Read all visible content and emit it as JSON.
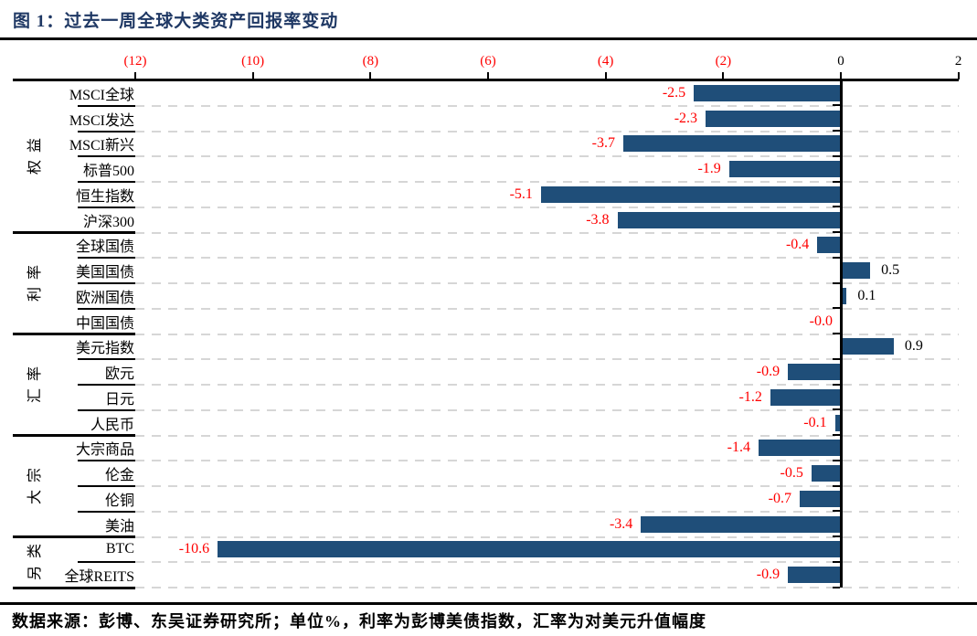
{
  "figure": {
    "title": "图 1：过去一周全球大类资产回报率变动",
    "source_note": "数据来源：彭博、东吴证券研究所；单位%，利率为彭博美债指数，汇率为对美元升值幅度"
  },
  "chart_data": {
    "type": "bar",
    "orientation": "horizontal",
    "title": "过去一周全球大类资产回报率变动",
    "unit": "%",
    "xlim": [
      -12,
      2
    ],
    "x_ticks": [
      {
        "value": -12,
        "label": "(12)"
      },
      {
        "value": -10,
        "label": "(10)"
      },
      {
        "value": -8,
        "label": "(8)"
      },
      {
        "value": -6,
        "label": "(6)"
      },
      {
        "value": -4,
        "label": "(4)"
      },
      {
        "value": -2,
        "label": "(2)"
      },
      {
        "value": 0,
        "label": "0"
      },
      {
        "value": 2,
        "label": "2"
      }
    ],
    "groups": [
      {
        "name": "权益",
        "items": [
          {
            "label": "MSCI全球",
            "value": -2.5,
            "display": "-2.5"
          },
          {
            "label": "MSCI发达",
            "value": -2.3,
            "display": "-2.3"
          },
          {
            "label": "MSCI新兴",
            "value": -3.7,
            "display": "-3.7"
          },
          {
            "label": "标普500",
            "value": -1.9,
            "display": "-1.9"
          },
          {
            "label": "恒生指数",
            "value": -5.1,
            "display": "-5.1"
          },
          {
            "label": "沪深300",
            "value": -3.8,
            "display": "-3.8"
          }
        ]
      },
      {
        "name": "利率",
        "items": [
          {
            "label": "全球国债",
            "value": -0.4,
            "display": "-0.4"
          },
          {
            "label": "美国国债",
            "value": 0.5,
            "display": "0.5"
          },
          {
            "label": "欧洲国债",
            "value": 0.1,
            "display": "0.1"
          },
          {
            "label": "中国国债",
            "value": 0,
            "display": "-0.0"
          }
        ]
      },
      {
        "name": "汇率",
        "items": [
          {
            "label": "美元指数",
            "value": 0.9,
            "display": "0.9"
          },
          {
            "label": "欧元",
            "value": -0.9,
            "display": "-0.9"
          },
          {
            "label": "日元",
            "value": -1.2,
            "display": "-1.2"
          },
          {
            "label": "人民币",
            "value": -0.1,
            "display": "-0.1"
          }
        ]
      },
      {
        "name": "大宗",
        "items": [
          {
            "label": "大宗商品",
            "value": -1.4,
            "display": "-1.4"
          },
          {
            "label": "伦金",
            "value": -0.5,
            "display": "-0.5"
          },
          {
            "label": "伦铜",
            "value": -0.7,
            "display": "-0.7"
          },
          {
            "label": "美油",
            "value": -3.4,
            "display": "-3.4"
          }
        ]
      },
      {
        "name": "另类",
        "items": [
          {
            "label": "BTC",
            "value": -10.6,
            "display": "-10.6"
          },
          {
            "label": "全球REITS",
            "value": -0.9,
            "display": "-0.9"
          }
        ]
      }
    ],
    "grid": "dashed horizontal row separators",
    "legend_position": "none",
    "colors": {
      "bar": "#1F4E79",
      "negative_label": "#FF0000",
      "positive_label": "#000000",
      "title": "#1F3864",
      "gridline": "#D6D6D6",
      "axis_line": "#000000"
    }
  }
}
